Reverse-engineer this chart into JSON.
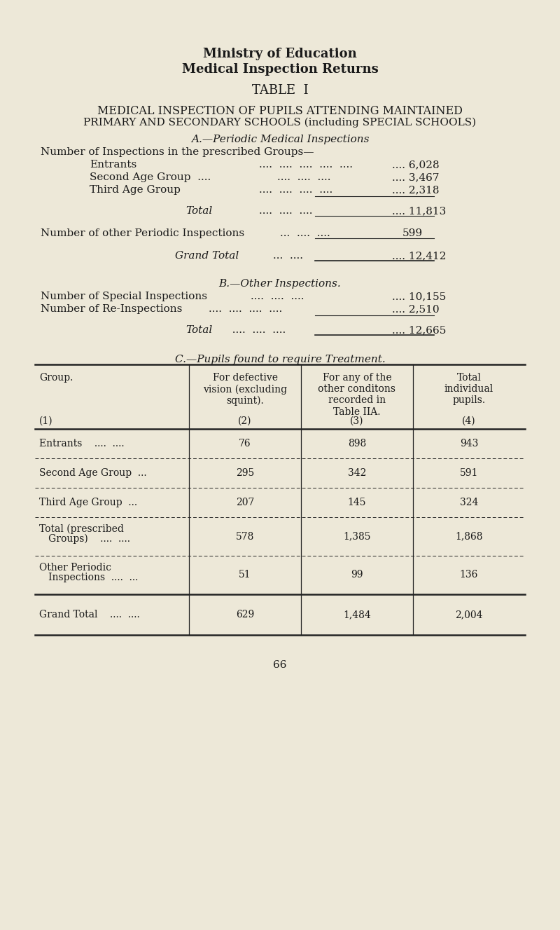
{
  "bg_color": "#ede8d8",
  "text_color": "#1a1a1a",
  "title1": "Ministry of Education",
  "title2": "Medical Inspection Returns",
  "table_title": "TABLE  I",
  "subtitle1": "MEDICAL INSPECTION OF PUPILS ATTENDING MAINTAINED",
  "subtitle2": "PRIMARY AND SECONDARY SCHOOLS (including SPECIAL SCHOOLS)",
  "section_a_title": "A.—Periodic Medical Inspections",
  "section_a_intro": "Number of Inspections in the prescribed Groups—",
  "entrants_dots": "....  ....  ....  ....  ....",
  "entrants_val": ".... 6,028",
  "second_label": "Second Age Group  ....",
  "second_dots": "....  ....  ....",
  "second_val": ".... 3,467",
  "third_label": "Third Age Group",
  "third_dots": "....  ....  ....  ....",
  "third_val": ".... 2,318",
  "total_a_label": "Total",
  "total_a_dots": "....  ....  ....",
  "total_a_val": ".... 11,813",
  "other_label": "Number of other Periodic Inspections",
  "other_dots": "...  ....  ....",
  "other_val": "599",
  "grand_a_label": "Grand Total",
  "grand_a_dots": "...  ....",
  "grand_a_val": ".... 12,412",
  "section_b_title": "B.—Other Inspections.",
  "special_label": "Number of Special Inspections",
  "special_dots": "....  ....  ....",
  "special_val": ".... 10,155",
  "reinsp_label": "Number of Re-Inspections",
  "reinsp_dots": "....  ....  ....  ....",
  "reinsp_val": ".... 2,510",
  "total_b_label": "Total",
  "total_b_dots": "....  ....  ....",
  "total_b_val": ".... 12,665",
  "section_c_title": "C.—Pupils found to require Treatment.",
  "col1_header": "Group.",
  "col2_header": "For defective\nvision (excluding\nsquint).",
  "col3_header": "For any of the\nother conditons\nrecorded in\nTable IIA.",
  "col4_header": "Total\nindividual\npupils.",
  "col_nums": [
    "(1)",
    "(2)",
    "(3)",
    "(4)"
  ],
  "table_rows": [
    {
      "label": "Entrants    ....  ....",
      "v2": "76",
      "v3": "898",
      "v4": "943"
    },
    {
      "label": "Second Age Group  ...",
      "v2": "295",
      "v3": "342",
      "v4": "591"
    },
    {
      "label": "Third Age Group  ...",
      "v2": "207",
      "v3": "145",
      "v4": "324"
    },
    {
      "label": "Total (prescribed\n   Groups)    ....  ....",
      "v2": "578",
      "v3": "1,385",
      "v4": "1,868"
    },
    {
      "label": "Other Periodic\n   Inspections  ....  ...",
      "v2": "51",
      "v3": "99",
      "v4": "136"
    },
    {
      "label": "Grand Total    ....  ....",
      "v2": "629",
      "v3": "1,484",
      "v4": "2,004"
    }
  ],
  "page_number": "66",
  "fig_width": 8.0,
  "fig_height": 13.27,
  "dpi": 100
}
